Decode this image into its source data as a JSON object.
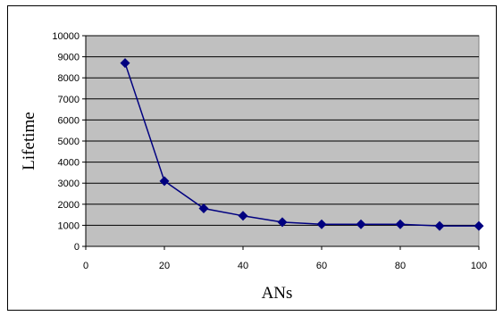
{
  "chart_data": {
    "type": "line",
    "title": "",
    "xlabel": "ANs",
    "ylabel": "Lifetime",
    "xlim": [
      0,
      100
    ],
    "ylim": [
      0,
      10000
    ],
    "xticks": [
      0,
      20,
      40,
      60,
      80,
      100
    ],
    "yticks": [
      0,
      1000,
      2000,
      3000,
      4000,
      5000,
      6000,
      7000,
      8000,
      9000,
      10000
    ],
    "grid": "horizontal",
    "plot_background": "#c0c0c0",
    "series": [
      {
        "color": "#000080",
        "marker": "diamond",
        "x": [
          10,
          20,
          30,
          40,
          50,
          60,
          70,
          80,
          90,
          100
        ],
        "y": [
          8700,
          3100,
          1800,
          1450,
          1150,
          1050,
          1050,
          1050,
          970,
          970
        ]
      }
    ]
  }
}
